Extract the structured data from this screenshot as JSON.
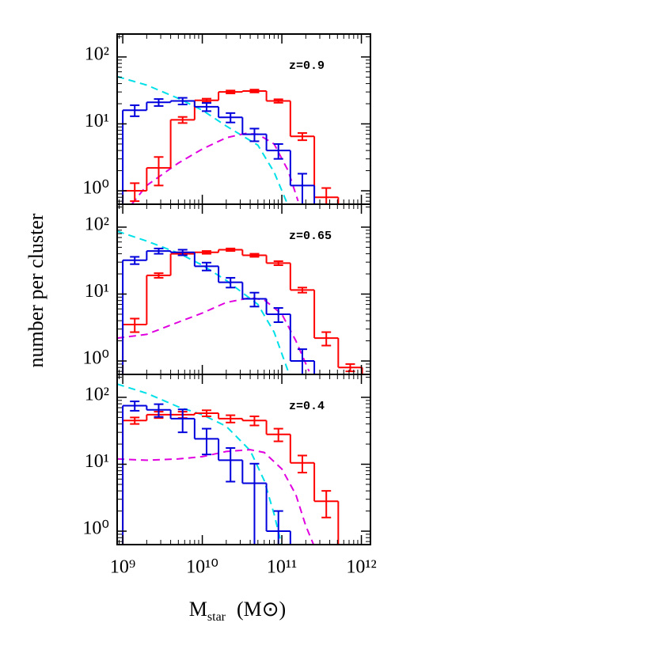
{
  "chart_data": [
    {
      "type": "histogram",
      "annotation": "z=0.9",
      "bins": [
        1000000000.0,
        2000000000.0,
        4000000000.0,
        8000000000.0,
        16000000000.0,
        32000000000.0,
        64000000000.0,
        128000000000.0,
        256000000000.0,
        512000000000.0,
        1024000000000.0
      ],
      "series": [
        {
          "color": "#ff0000",
          "values": [
            1.0,
            2.2,
            11.5,
            22.5,
            30,
            31,
            22,
            6.5,
            0.8,
            null
          ],
          "errors": [
            0.3,
            1.0,
            1.2,
            1.3,
            1.5,
            1.5,
            1.3,
            0.8,
            0.3,
            null
          ]
        },
        {
          "color": "#0000dd",
          "values": [
            16,
            21,
            22,
            18,
            12.5,
            7,
            4,
            1.2,
            null,
            null
          ],
          "errors": [
            3,
            2.5,
            2.5,
            2.5,
            2,
            1.5,
            1,
            0.6,
            null,
            null
          ]
        }
      ],
      "curves": [
        {
          "color": "#00e0e8",
          "x": [
            850000000.0,
            2000000000.0,
            5000000000.0,
            10000000000.0,
            20000000000.0,
            50000000000.0,
            80000000000.0,
            120000000000.0
          ],
          "values": [
            51,
            38,
            24,
            16,
            9.3,
            4.8,
            1.9,
            0.6
          ]
        },
        {
          "color": "#e000e0",
          "x": [
            1300000000.0,
            2000000000.0,
            5000000000.0,
            10000000000.0,
            20000000000.0,
            35000000000.0,
            50000000000.0,
            80000000000.0,
            120000000000.0,
            160000000000.0
          ],
          "values": [
            0.63,
            1.2,
            2.6,
            4.2,
            6.2,
            7.2,
            7,
            5,
            2,
            0.7
          ]
        }
      ],
      "xlim": [
        850000000.0,
        1300000000000.0
      ],
      "ylim": [
        0.63,
        220
      ],
      "log_x": true,
      "log_y": true,
      "yticks": [
        {
          "value": 1,
          "label": "10⁰"
        },
        {
          "value": 10,
          "label": "10¹"
        },
        {
          "value": 100,
          "label": "10²"
        }
      ]
    },
    {
      "type": "histogram",
      "annotation": "z=0.65",
      "y_label": "number per cluster",
      "bins": [
        1000000000.0,
        2000000000.0,
        4000000000.0,
        8000000000.0,
        16000000000.0,
        32000000000.0,
        64000000000.0,
        128000000000.0,
        256000000000.0,
        512000000000.0,
        1024000000000.0
      ],
      "series": [
        {
          "color": "#ff0000",
          "values": [
            3.5,
            19,
            40,
            42,
            46,
            38,
            29,
            11.5,
            2.2,
            0.8
          ],
          "errors": [
            0.8,
            1.5,
            2,
            2,
            2,
            2,
            2,
            1,
            0.5,
            0.1
          ]
        },
        {
          "color": "#0000dd",
          "values": [
            32,
            44,
            42,
            26,
            15,
            8.5,
            5,
            1.0,
            null,
            null
          ],
          "errors": [
            4,
            4,
            4,
            3.5,
            2.5,
            2,
            1.2,
            0.5,
            null,
            null
          ]
        }
      ],
      "curves": [
        {
          "color": "#00e0e8",
          "x": [
            850000000.0,
            2000000000.0,
            5000000000.0,
            10000000000.0,
            20000000000.0,
            50000000000.0,
            80000000000.0,
            120000000000.0
          ],
          "values": [
            87,
            62,
            41,
            27,
            16,
            7,
            2.7,
            0.7
          ]
        },
        {
          "color": "#e000e0",
          "x": [
            850000000.0,
            2000000000.0,
            5000000000.0,
            10000000000.0,
            20000000000.0,
            40000000000.0,
            60000000000.0,
            100000000000.0,
            150000000000.0,
            220000000000.0
          ],
          "values": [
            2.2,
            2.5,
            3.8,
            5.2,
            7.5,
            8.8,
            8.2,
            5,
            2,
            0.7
          ]
        }
      ],
      "xlim": [
        850000000.0,
        1300000000000.0
      ],
      "ylim": [
        0.63,
        220
      ],
      "log_x": true,
      "log_y": true,
      "yticks": [
        {
          "value": 1,
          "label": "10⁰"
        },
        {
          "value": 10,
          "label": "10¹"
        },
        {
          "value": 100,
          "label": "10²"
        }
      ]
    },
    {
      "type": "histogram",
      "annotation": "z=0.4",
      "x_label": [
        "M",
        "star",
        "(M⊙)"
      ],
      "bins": [
        1000000000.0,
        2000000000.0,
        4000000000.0,
        8000000000.0,
        16000000000.0,
        32000000000.0,
        64000000000.0,
        128000000000.0,
        256000000000.0,
        512000000000.0,
        1024000000000.0
      ],
      "series": [
        {
          "color": "#ff0000",
          "values": [
            45,
            55,
            55,
            58,
            48,
            45,
            28,
            10.5,
            2.8,
            null
          ],
          "errors": [
            5,
            6,
            6,
            6,
            6,
            7,
            6,
            3,
            1.2,
            null
          ]
        },
        {
          "color": "#0000dd",
          "values": [
            75,
            65,
            48,
            24,
            11.5,
            5.2,
            1.0,
            null,
            null,
            null
          ],
          "errors": [
            12,
            14,
            18,
            10,
            6,
            5,
            1,
            null,
            null,
            null
          ]
        }
      ],
      "curves": [
        {
          "color": "#00e0e8",
          "x": [
            850000000.0,
            2000000000.0,
            5000000000.0,
            10000000000.0,
            20000000000.0,
            40000000000.0,
            60000000000.0,
            80000000000.0,
            100000000000.0
          ],
          "values": [
            158,
            115,
            72,
            55,
            37,
            16,
            5.7,
            1.8,
            0.6
          ]
        },
        {
          "color": "#e000e0",
          "x": [
            850000000.0,
            2000000000.0,
            5000000000.0,
            10000000000.0,
            20000000000.0,
            40000000000.0,
            60000000000.0,
            100000000000.0,
            150000000000.0,
            200000000000.0,
            250000000000.0
          ],
          "values": [
            12,
            11.5,
            12,
            13,
            15.5,
            16.5,
            15,
            8.5,
            3.5,
            1.2,
            0.63
          ]
        }
      ],
      "xlim": [
        850000000.0,
        1300000000000.0
      ],
      "ylim": [
        0.63,
        220
      ],
      "log_x": true,
      "log_y": true,
      "xticks": [
        {
          "value": 1000000000.0,
          "label": "10⁹"
        },
        {
          "value": 10000000000.0,
          "label": "10¹⁰"
        },
        {
          "value": 100000000000.0,
          "label": "10¹¹"
        },
        {
          "value": 1000000000000.0,
          "label": "10¹²"
        }
      ],
      "yticks": [
        {
          "value": 1,
          "label": "10⁰"
        },
        {
          "value": 10,
          "label": "10¹"
        },
        {
          "value": 100,
          "label": "10²"
        }
      ]
    }
  ]
}
